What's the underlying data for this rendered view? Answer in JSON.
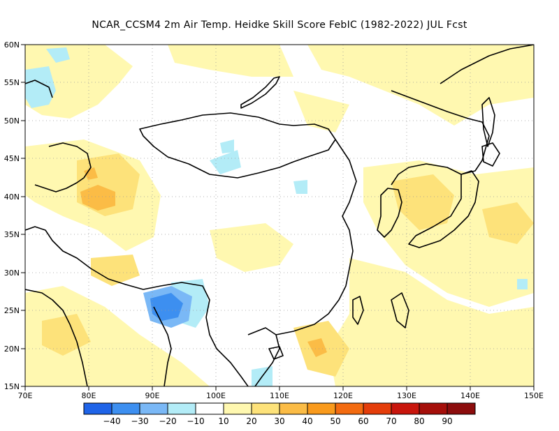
{
  "title": "NCAR_CCSM4  2m Air Temp. Heidke Skill Score FebIC (1982-2022) JUL Fcst",
  "axes": {
    "lon_labels": [
      "70E",
      "80E",
      "90E",
      "100E",
      "110E",
      "120E",
      "130E",
      "140E",
      "150E"
    ],
    "lat_labels": [
      "60N",
      "55N",
      "50N",
      "45N",
      "40N",
      "35N",
      "30N",
      "25N",
      "20N",
      "15N"
    ],
    "lon_range": [
      70,
      150
    ],
    "lat_range": [
      15,
      60
    ],
    "grid": "dotted"
  },
  "legend": {
    "labels": [
      "-40",
      "-30",
      "-20",
      "-10",
      "10",
      "20",
      "30",
      "40",
      "50",
      "60",
      "70",
      "80",
      "90"
    ],
    "colors": [
      "#1f64e8",
      "#3d8ff0",
      "#7ab8f6",
      "#b3ecf7",
      "#ffffff",
      "#fff8b0",
      "#fde27a",
      "#fbbc46",
      "#f99a1c",
      "#f36b10",
      "#e43d0a",
      "#c8150c",
      "#a50f0a",
      "#8c0d0d"
    ]
  },
  "colors": {
    "coast": "#000000",
    "background": "#ffffff"
  }
}
